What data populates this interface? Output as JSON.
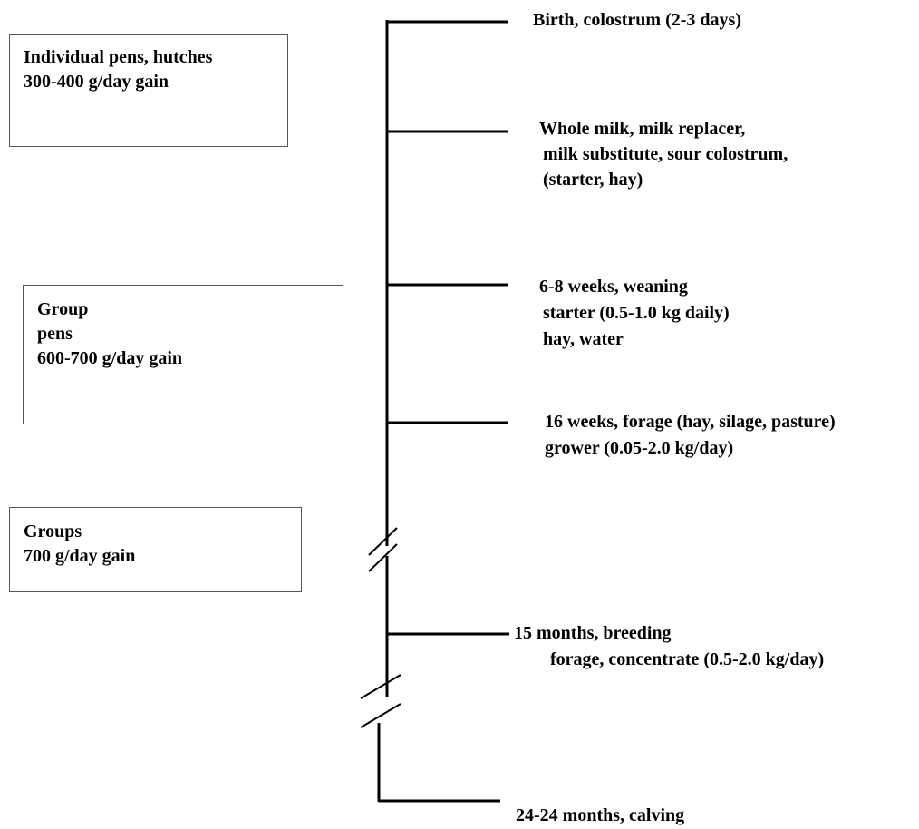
{
  "boxes": [
    {
      "lines": [
        "Individual pens, hutches",
        "300-400 g/day gain"
      ]
    },
    {
      "lines": [
        "Group",
        "pens",
        "600-700 g/day gain"
      ]
    },
    {
      "lines": [
        "Groups",
        "700 g/day gain"
      ]
    }
  ],
  "milestones": [
    {
      "lines": [
        "Birth, colostrum (2-3 days)"
      ]
    },
    {
      "lines": [
        "Whole milk, milk replacer,",
        "milk substitute, sour colostrum,",
        "(starter, hay)"
      ]
    },
    {
      "lines": [
        "6-8 weeks, weaning",
        "starter (0.5-1.0 kg daily)",
        "hay, water"
      ]
    },
    {
      "lines": [
        "16 weeks, forage (hay, silage, pasture)",
        "grower (0.05-2.0 kg/day)"
      ]
    },
    {
      "lines": [
        "15 months, breeding",
        "forage, concentrate (0.5-2.0 kg/day)"
      ]
    },
    {
      "lines": [
        "24-24 months, calving"
      ]
    }
  ],
  "colors": {
    "line": "#000000",
    "box_border": "#555555"
  }
}
